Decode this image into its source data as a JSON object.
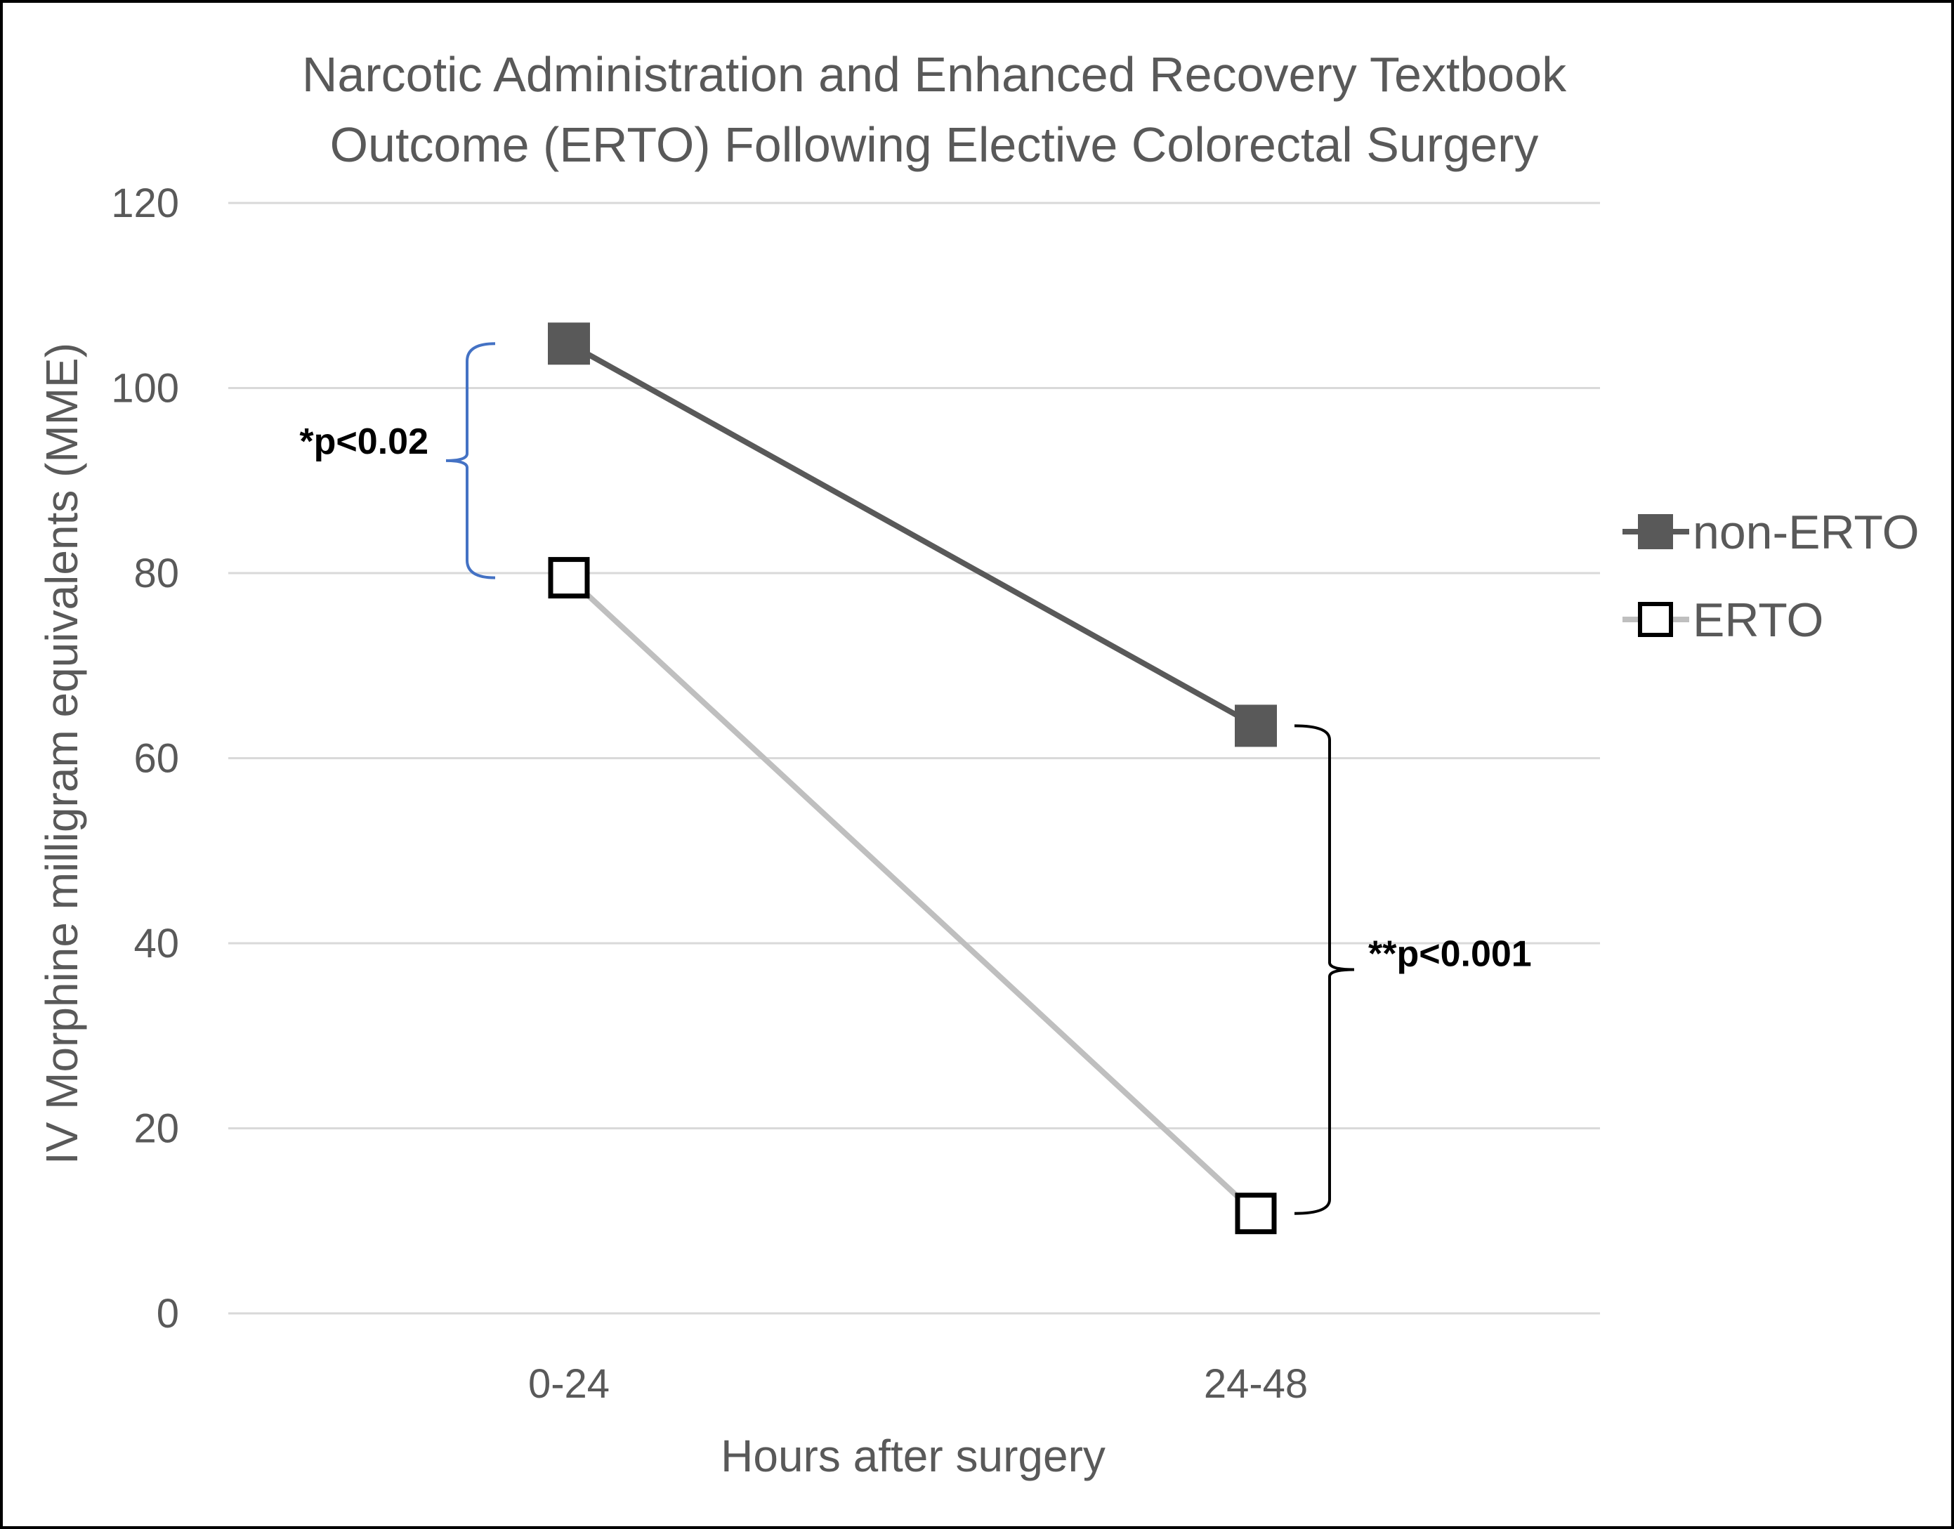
{
  "chart_data": {
    "type": "line",
    "title": [
      "Narcotic Administration and Enhanced Recovery Textbook",
      "Outcome (ERTO) Following Elective Colorectal Surgery"
    ],
    "xlabel": "Hours after surgery",
    "ylabel": "IV Morphine milligram equivalents (MME)",
    "categories": [
      "0-24",
      "24-48"
    ],
    "ylim": [
      0,
      120
    ],
    "yticks": [
      0,
      20,
      40,
      60,
      80,
      100,
      120
    ],
    "grid": true,
    "legend_position": "right",
    "series": [
      {
        "name": "non-ERTO",
        "values": [
          104.8,
          63.5
        ],
        "color": "#595959",
        "marker": "filled-square"
      },
      {
        "name": "ERTO",
        "values": [
          79.5,
          10.8
        ],
        "color": "#bfbfbf",
        "marker": "open-square"
      }
    ],
    "annotations": [
      {
        "text": "*p<0.02",
        "category": "0-24",
        "range": [
          104.8,
          79.5
        ],
        "color": "#4472c4",
        "side": "left"
      },
      {
        "text": "**p<0.001",
        "category": "24-48",
        "range": [
          63.5,
          10.8
        ],
        "color": "#000000",
        "side": "right"
      }
    ]
  }
}
